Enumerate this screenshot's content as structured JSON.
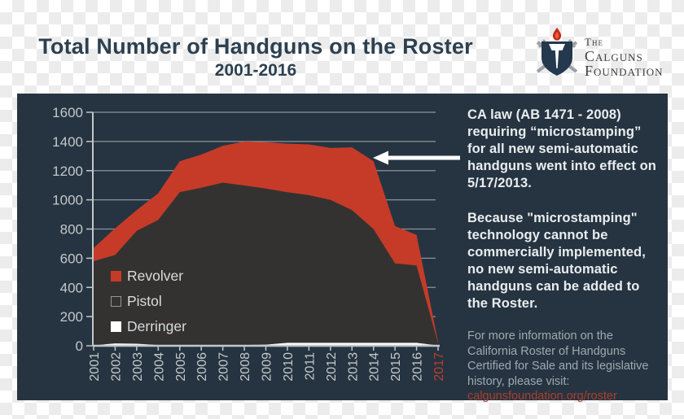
{
  "header": {
    "title": "Total Number of Handguns on the Roster",
    "subtitle": "2001-2016",
    "logo": {
      "line1": "The",
      "line2": "Calguns",
      "line3": "Foundation"
    }
  },
  "annotation": {
    "para1": "CA law (AB 1471 - 2008)\nrequiring “microstamping”\nfor all new semi-automatic\nhandguns went into effect on\n5/17/2013.",
    "para2": "Because \"microstamping\"\ntechnology cannot be\ncommercially implemented,\nno new semi-automatic\nhandguns can be added to\nthe Roster.",
    "footer_text": "For more information on the\nCalifornia Roster of Handguns\nCertified for Sale and its legislative\nhistory, please visit:",
    "footer_link": "calgunsfoundation.org/roster"
  },
  "chart_data": {
    "type": "area",
    "stacked": true,
    "title": "Total Number of Handguns on the Roster 2001-2016",
    "x": [
      2001,
      2002,
      2003,
      2004,
      2005,
      2006,
      2007,
      2008,
      2009,
      2010,
      2011,
      2012,
      2013,
      2014,
      2015,
      2016,
      2017
    ],
    "series": [
      {
        "name": "Derringer",
        "color": "#ffffff",
        "values": [
          3,
          16,
          14,
          5,
          4,
          4,
          4,
          5,
          8,
          20,
          20,
          20,
          20,
          20,
          20,
          20,
          2
        ]
      },
      {
        "name": "Pistol",
        "color": "#343231",
        "values": [
          577,
          606,
          773,
          858,
          1049,
          1079,
          1114,
          1093,
          1069,
          1032,
          1012,
          980,
          910,
          780,
          545,
          530,
          15
        ]
      },
      {
        "name": "Revolver",
        "color": "#c63b28",
        "values": [
          90,
          183,
          143,
          182,
          212,
          227,
          252,
          302,
          318,
          333,
          348,
          355,
          430,
          465,
          255,
          210,
          8
        ]
      }
    ],
    "legend": [
      "Revolver",
      "Pistol",
      "Derringer"
    ],
    "legend_position": "inside-left",
    "ylim": [
      0,
      1600
    ],
    "yticks": [
      0,
      200,
      400,
      600,
      800,
      1000,
      1200,
      1400,
      1600
    ],
    "grid": "horizontal",
    "grid_color": "#8a9399",
    "axis_color": "#c2c7c9",
    "tick_label_color": "#c3c8ca",
    "last_tick_color": "#bd3c2d",
    "background_color": "#263441"
  },
  "colors": {
    "panel_bg": "#263441",
    "title_text": "#2d4050",
    "paragraph_text": "#e9edef",
    "footer_text": "#9fa9af",
    "footer_link": "#ad3d2c",
    "arrow": "#ffffff",
    "logo_shield": "#24384e",
    "logo_flame": "#c4281c",
    "logo_swords": "#9aa1a6"
  }
}
